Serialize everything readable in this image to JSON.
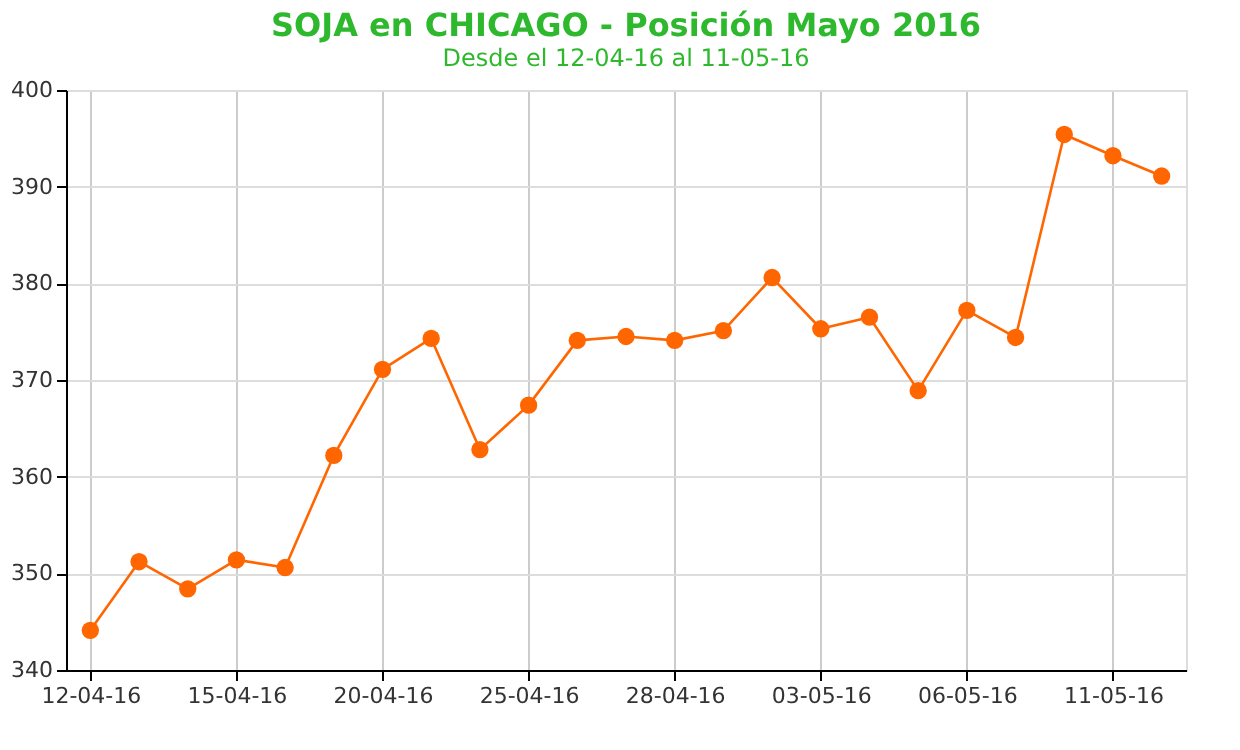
{
  "chart_data": {
    "type": "line",
    "title": "SOJA en CHICAGO - Posición Mayo 2016",
    "subtitle": "Desde el 12-04-16 al 11-05-16",
    "categories": [
      "12-04-16",
      null,
      null,
      "15-04-16",
      null,
      null,
      "20-04-16",
      null,
      null,
      "25-04-16",
      null,
      null,
      "28-04-16",
      null,
      null,
      "03-05-16",
      null,
      null,
      "06-05-16",
      null,
      null,
      "11-05-16",
      null
    ],
    "series": [
      {
        "color": "#ff6600",
        "values": [
          344.1,
          351.2,
          348.4,
          351.4,
          350.6,
          362.2,
          371.1,
          374.3,
          362.8,
          367.4,
          374.1,
          374.5,
          374.1,
          375.1,
          380.6,
          375.3,
          376.5,
          368.9,
          377.2,
          374.4,
          395.4,
          393.2,
          391.1
        ]
      }
    ],
    "ylim": [
      340,
      400
    ],
    "yticks": [
      340,
      350,
      360,
      370,
      380,
      390,
      400
    ],
    "grid": true,
    "marker": "circle",
    "line_style": "solid"
  }
}
